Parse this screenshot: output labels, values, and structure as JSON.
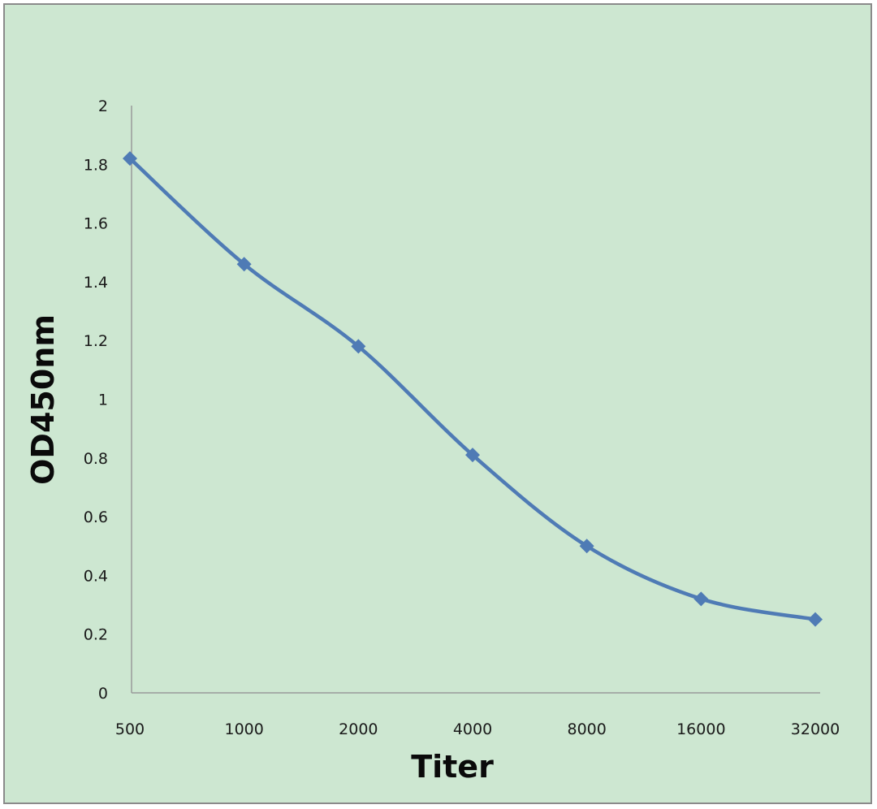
{
  "chart_data": {
    "type": "line",
    "title": "",
    "xlabel": "Titer",
    "ylabel": "OD450nm",
    "categories": [
      "500",
      "1000",
      "2000",
      "4000",
      "8000",
      "16000",
      "32000"
    ],
    "series": [
      {
        "name": "OD450nm",
        "values": [
          1.82,
          1.46,
          1.18,
          0.81,
          0.5,
          0.32,
          0.25
        ],
        "color": "#4f7bb5"
      }
    ],
    "ylim": [
      0,
      2
    ],
    "yticks": [
      "0",
      "0.2",
      "0.4",
      "0.6",
      "0.8",
      "1",
      "1.2",
      "1.4",
      "1.6",
      "1.8",
      "2"
    ],
    "grid": false,
    "marker": "diamond",
    "smooth": true
  }
}
